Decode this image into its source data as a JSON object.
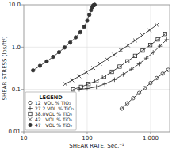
{
  "chart_data": {
    "type": "line",
    "xlabel": "SHEAR RATE, Sec.⁻¹",
    "ylabel": "SHEAR STRESS (lbs/ft²)",
    "log": true,
    "grid": true,
    "legend": "lower left",
    "legend_title": "LEGEND",
    "color": "#333333",
    "xlim": [
      10,
      2000
    ],
    "ylim": [
      0.01,
      10.0
    ],
    "xticks": [
      10,
      100,
      {
        "value": 1000,
        "label": "1,000"
      }
    ],
    "yticks": [
      0.01,
      0.1,
      {
        "value": 1.0,
        "label": "1.0"
      },
      {
        "value": 10.0,
        "label": "10.0"
      }
    ],
    "series": [
      {
        "name": "12  VOL % TiO₂",
        "marker": "circle",
        "x": [
          350,
          430,
          530,
          660,
          810,
          1000,
          1250,
          1550,
          1900
        ],
        "values": [
          0.035,
          0.047,
          0.062,
          0.082,
          0.108,
          0.142,
          0.185,
          0.235,
          0.29
        ]
      },
      {
        "name": "27.2 VOL % TiO₂",
        "marker": "plus",
        "x": [
          75,
          100,
          140,
          190,
          270,
          370,
          500,
          660,
          860,
          1100,
          1400,
          1800
        ],
        "values": [
          0.1,
          0.105,
          0.115,
          0.135,
          0.17,
          0.225,
          0.3,
          0.4,
          0.55,
          0.75,
          1.05,
          1.5
        ]
      },
      {
        "name": "38.0VOL % TiO₂",
        "marker": "square",
        "x": [
          60,
          80,
          105,
          140,
          185,
          245,
          325,
          430,
          570,
          750,
          990,
          1300,
          1700
        ],
        "values": [
          0.1,
          0.115,
          0.135,
          0.16,
          0.2,
          0.26,
          0.345,
          0.46,
          0.62,
          0.83,
          1.12,
          1.52,
          2.05
        ]
      },
      {
        "name": "42   VOL % TiO₂",
        "marker": "cross",
        "x": [
          45,
          58,
          75,
          97,
          125,
          160,
          205,
          265,
          340,
          440,
          570,
          740,
          960,
          1250
        ],
        "values": [
          0.135,
          0.165,
          0.205,
          0.255,
          0.32,
          0.405,
          0.515,
          0.66,
          0.85,
          1.1,
          1.44,
          1.9,
          2.52,
          3.35
        ]
      },
      {
        "name": "47   VOL % TiO₂",
        "marker": "disc",
        "x": [
          14,
          18,
          23,
          29,
          36,
          44,
          54,
          66,
          78,
          90,
          100,
          108,
          115,
          120,
          124,
          127,
          129,
          131
        ],
        "values": [
          0.28,
          0.36,
          0.46,
          0.59,
          0.76,
          0.98,
          1.28,
          1.7,
          2.25,
          3.05,
          4.2,
          5.8,
          7.5,
          8.8,
          9.5,
          9.8,
          9.9,
          10.0
        ]
      }
    ]
  }
}
